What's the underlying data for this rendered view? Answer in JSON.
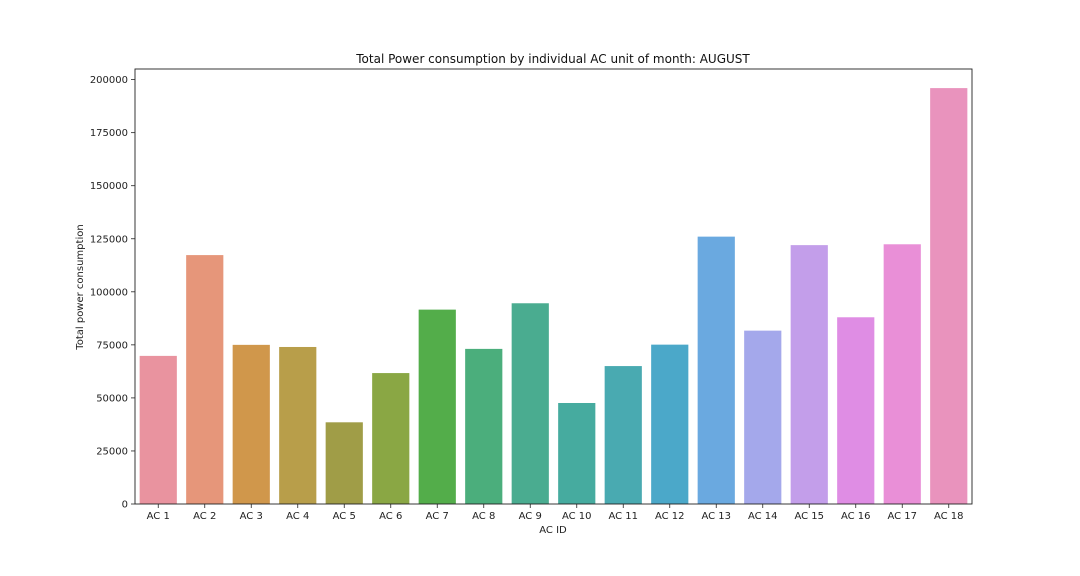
{
  "chart_data": {
    "type": "bar",
    "title": "Total Power consumption by individual AC unit of month: AUGUST",
    "xlabel": "AC ID",
    "ylabel": "Total power consumption",
    "categories": [
      "AC 1",
      "AC 2",
      "AC 3",
      "AC 4",
      "AC 5",
      "AC 6",
      "AC 7",
      "AC 8",
      "AC 9",
      "AC 10",
      "AC 11",
      "AC 12",
      "AC 13",
      "AC 14",
      "AC 15",
      "AC 16",
      "AC 17",
      "AC 18"
    ],
    "values": [
      69800,
      117300,
      75000,
      74000,
      38500,
      61700,
      91600,
      73100,
      94600,
      47600,
      65000,
      75100,
      126000,
      81700,
      122000,
      88000,
      122400,
      196000
    ],
    "colors": [
      "#e9939f",
      "#e6967a",
      "#d0974b",
      "#b89e4a",
      "#a09d47",
      "#8aa744",
      "#53ad4a",
      "#4bae7c",
      "#4aac90",
      "#46ab9f",
      "#49aab1",
      "#4ba8c9",
      "#6aa9e0",
      "#a4a8eb",
      "#c39eea",
      "#df8de4",
      "#e98fd7",
      "#e993bd"
    ],
    "ylim": [
      0,
      205000
    ],
    "yticks": [
      0,
      25000,
      50000,
      75000,
      100000,
      125000,
      150000,
      175000,
      200000
    ],
    "grid": false,
    "legend": "none"
  }
}
